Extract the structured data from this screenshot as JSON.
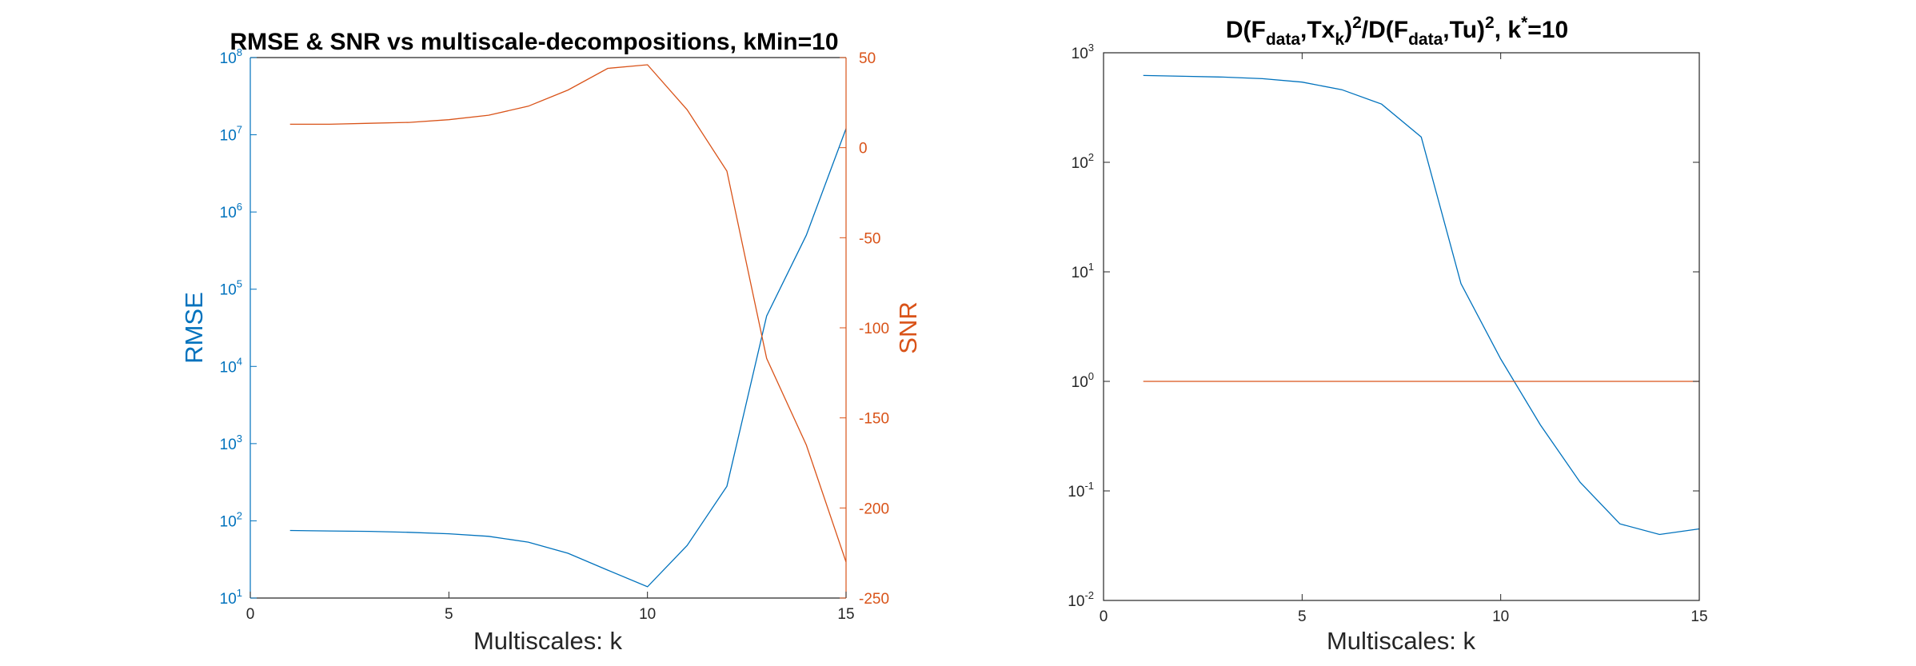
{
  "chart_data": [
    {
      "type": "line",
      "title": "RMSE & SNR vs multiscale-decompositions, kMin=10",
      "xlabel": "Multiscales: k",
      "ylabel_left": "RMSE",
      "ylabel_right": "SNR",
      "xlim": [
        0,
        15
      ],
      "xticks": [
        "0",
        "5",
        "10",
        "15"
      ],
      "ylim_left": [
        10,
        100000000
      ],
      "yscale_left": "log",
      "yticks_left": [
        {
          "base": "10",
          "exp": "1"
        },
        {
          "base": "10",
          "exp": "2"
        },
        {
          "base": "10",
          "exp": "3"
        },
        {
          "base": "10",
          "exp": "4"
        },
        {
          "base": "10",
          "exp": "5"
        },
        {
          "base": "10",
          "exp": "6"
        },
        {
          "base": "10",
          "exp": "7"
        },
        {
          "base": "10",
          "exp": "8"
        }
      ],
      "ylim_right": [
        -250,
        50
      ],
      "yscale_right": "linear",
      "yticks_right": [
        "50",
        "0",
        "-50",
        "-100",
        "-150",
        "-200",
        "-250"
      ],
      "grid": false,
      "x": [
        1,
        2,
        3,
        4,
        5,
        6,
        7,
        8,
        9,
        10,
        11,
        12,
        13,
        14,
        15
      ],
      "series": [
        {
          "axis": "left",
          "color": "#0072BD",
          "values": [
            75,
            74,
            73,
            71,
            68,
            63,
            53,
            38,
            23,
            14,
            48,
            280,
            45000,
            500000,
            12000000
          ]
        },
        {
          "axis": "right",
          "color": "#D95319",
          "values": [
            13,
            13,
            13.5,
            14,
            15.5,
            18,
            23,
            32,
            44,
            46,
            21,
            -13,
            -117,
            -165,
            -230
          ]
        }
      ]
    },
    {
      "type": "line",
      "title_parts": {
        "p1": "D(F",
        "sub1": "data",
        "p2": ",Tx",
        "sub2": "k",
        "p3": ")",
        "sup1": "2",
        "p4": "/D(F",
        "sub3": "data",
        "p5": ",Tu)",
        "sup2": "2",
        "p6": ", k",
        "sup3": "*",
        "p7": "=10"
      },
      "xlabel": "Multiscales: k",
      "xlim": [
        0,
        15
      ],
      "xticks": [
        "0",
        "5",
        "10",
        "15"
      ],
      "ylim": [
        0.01,
        1000
      ],
      "yscale": "log",
      "yticks": [
        {
          "base": "10",
          "exp": "-2"
        },
        {
          "base": "10",
          "exp": "-1"
        },
        {
          "base": "10",
          "exp": "0"
        },
        {
          "base": "10",
          "exp": "1"
        },
        {
          "base": "10",
          "exp": "2"
        },
        {
          "base": "10",
          "exp": "3"
        }
      ],
      "grid": false,
      "x": [
        1,
        2,
        3,
        4,
        5,
        6,
        7,
        8,
        9,
        10,
        11,
        12,
        13,
        14,
        15
      ],
      "series": [
        {
          "color": "#0072BD",
          "values": [
            620,
            610,
            600,
            580,
            540,
            460,
            340,
            170,
            7.8,
            1.6,
            0.4,
            0.12,
            0.05,
            0.04,
            0.045
          ]
        },
        {
          "color": "#D95319",
          "values": [
            1,
            1,
            1,
            1,
            1,
            1,
            1,
            1,
            1,
            1,
            1,
            1,
            1,
            1,
            1
          ]
        }
      ]
    }
  ]
}
